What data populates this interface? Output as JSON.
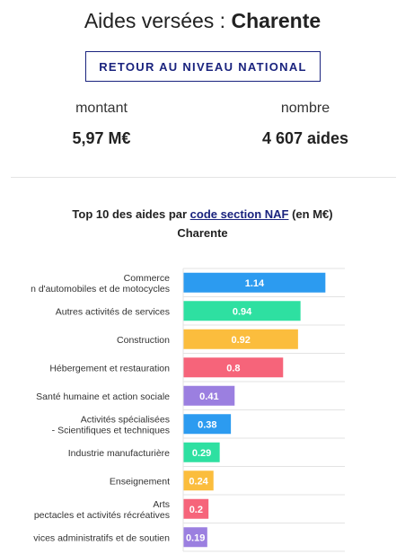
{
  "header": {
    "title_prefix": "Aides versées :",
    "title_region": "Charente",
    "back_button": "RETOUR AU NIVEAU NATIONAL"
  },
  "stats": {
    "amount_label": "montant",
    "amount_value": "5,97 M€",
    "count_label": "nombre",
    "count_value": "4 607 aides"
  },
  "chart_header": {
    "prefix": "Top 10 des aides par",
    "link": "code section NAF",
    "suffix": "(en M€)",
    "subtitle": "Charente"
  },
  "chart_data": {
    "type": "bar",
    "orientation": "horizontal",
    "title": "Top 10 des aides par code section NAF (en M€)",
    "subtitle": "Charente",
    "categories": [
      [
        "Commerce",
        "n d'automobiles et de motocycles"
      ],
      [
        "Autres activités de services"
      ],
      [
        "Construction"
      ],
      [
        "Hébergement et restauration"
      ],
      [
        "Santé humaine et action sociale"
      ],
      [
        "Activités spécialisées",
        "- Scientifiques et techniques"
      ],
      [
        "Industrie manufacturière"
      ],
      [
        "Enseignement"
      ],
      [
        "Arts",
        "pectacles et activités récréatives"
      ],
      [
        "vices administratifs et de soutien"
      ]
    ],
    "values": [
      1.14,
      0.94,
      0.92,
      0.8,
      0.41,
      0.38,
      0.29,
      0.24,
      0.2,
      0.19
    ],
    "value_labels": [
      "1.14",
      "0.94",
      "0.92",
      "0.8",
      "0.41",
      "0.38",
      "0.29",
      "0.24",
      "0.2",
      "0.19"
    ],
    "colors": [
      "#2c9bf0",
      "#2ee0a1",
      "#fbbd3d",
      "#f6647a",
      "#9b7fe0",
      "#2c9bf0",
      "#2ee0a1",
      "#fbbd3d",
      "#f6647a",
      "#9b7fe0"
    ],
    "xlim": [
      0,
      1.3
    ],
    "grid": true
  }
}
